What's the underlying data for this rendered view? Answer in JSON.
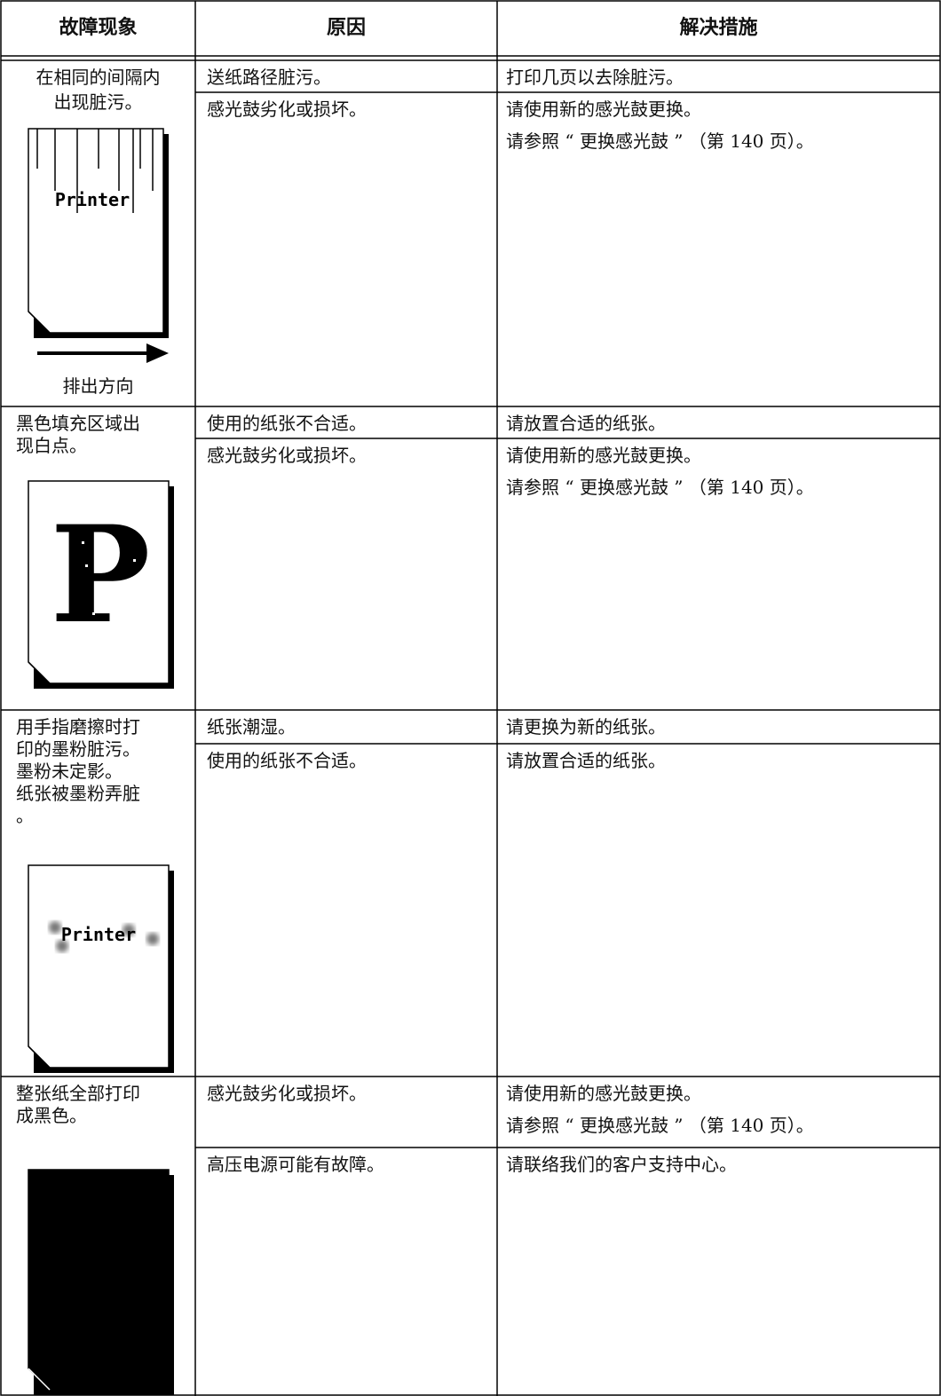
{
  "header": {
    "columns": [
      "故障现象",
      "原因",
      "解决措施"
    ]
  },
  "table": {
    "rows": [
      {
        "symptom": [
          "在相同的间隔内",
          "出现脏污。"
        ],
        "illustration": {
          "text": "Printer",
          "caption": "排出方向"
        },
        "causes": [
          {
            "cause": "送纸路径脏污。",
            "remedy": [
              "打印几页以去除脏污。"
            ]
          },
          {
            "cause": "感光鼓劣化或损坏。",
            "remedy": [
              "请使用新的感光鼓更换。",
              "请参照 “ 更换感光鼓 ” （第 140 页）。"
            ]
          }
        ]
      },
      {
        "symptom": [
          "黑色填充区域出",
          "现白点。"
        ],
        "illustration": {
          "text": "P"
        },
        "causes": [
          {
            "cause": "使用的纸张不合适。",
            "remedy": [
              "请放置合适的纸张。"
            ]
          },
          {
            "cause": "感光鼓劣化或损坏。",
            "remedy": [
              "请使用新的感光鼓更换。",
              "请参照 “ 更换感光鼓 ” （第 140 页）。"
            ]
          }
        ]
      },
      {
        "symptom": [
          "用手指磨擦时打",
          "印的墨粉脏污。",
          "墨粉未定影。",
          "纸张被墨粉弄脏",
          "。"
        ],
        "illustration": {
          "text": "Printer"
        },
        "causes": [
          {
            "cause": "纸张潮湿。",
            "remedy": [
              "请更换为新的纸张。"
            ]
          },
          {
            "cause": "使用的纸张不合适。",
            "remedy": [
              "请放置合适的纸张。"
            ]
          }
        ]
      },
      {
        "symptom": [
          "整张纸全部打印",
          "成黑色。"
        ],
        "causes": [
          {
            "cause": "感光鼓劣化或损坏。",
            "remedy": [
              "请使用新的感光鼓更换。",
              "请参照 “ 更换感光鼓 ” （第 140 页）。"
            ]
          },
          {
            "cause": "高压电源可能有故障。",
            "remedy": [
              "请联络我们的客户支持中心。"
            ]
          }
        ]
      }
    ]
  }
}
